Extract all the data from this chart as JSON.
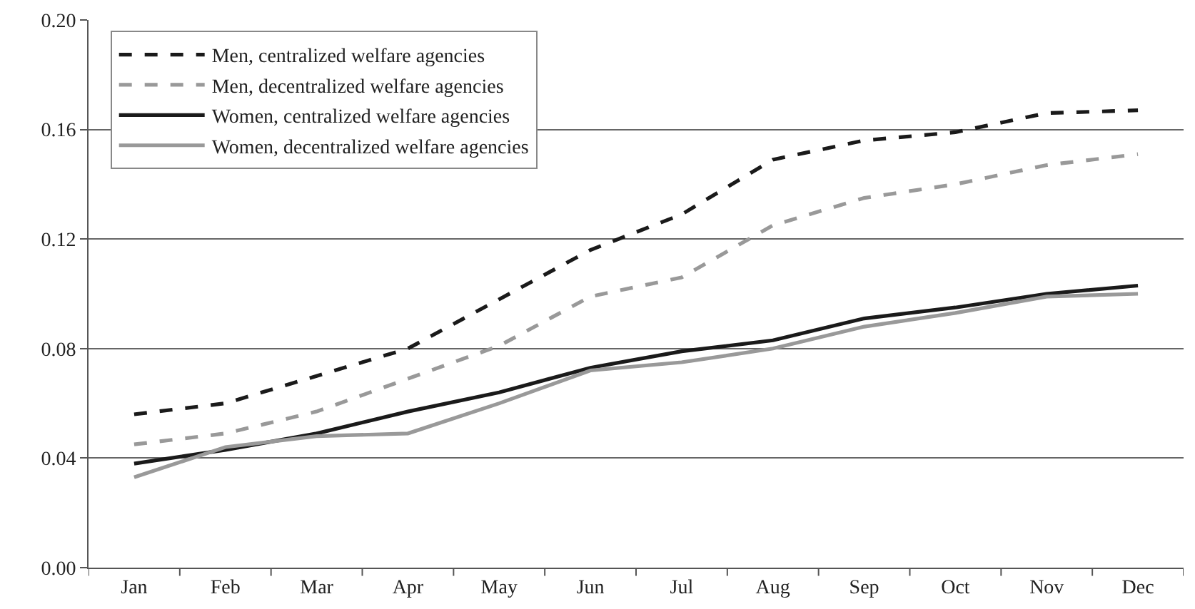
{
  "chart_data": {
    "type": "line",
    "categories": [
      "Jan",
      "Feb",
      "Mar",
      "Apr",
      "May",
      "Jun",
      "Jul",
      "Aug",
      "Sep",
      "Oct",
      "Nov",
      "Dec"
    ],
    "series": [
      {
        "name": "Men, centralized welfare agencies",
        "color": "#1a1a1a",
        "line_style": "dashed",
        "values": [
          0.056,
          0.06,
          0.07,
          0.08,
          0.098,
          0.116,
          0.129,
          0.149,
          0.156,
          0.159,
          0.166,
          0.167
        ]
      },
      {
        "name": "Men, decentralized welfare agencies",
        "color": "#999999",
        "line_style": "dashed",
        "values": [
          0.045,
          0.049,
          0.057,
          0.069,
          0.081,
          0.099,
          0.106,
          0.125,
          0.135,
          0.14,
          0.147,
          0.151
        ]
      },
      {
        "name": "Women, centralized welfare agencies",
        "color": "#1a1a1a",
        "line_style": "solid",
        "values": [
          0.038,
          0.043,
          0.049,
          0.057,
          0.064,
          0.073,
          0.079,
          0.083,
          0.091,
          0.095,
          0.1,
          0.103
        ]
      },
      {
        "name": "Women, decentralized welfare agencies",
        "color": "#999999",
        "line_style": "solid",
        "values": [
          0.033,
          0.044,
          0.048,
          0.049,
          0.06,
          0.072,
          0.075,
          0.08,
          0.088,
          0.093,
          0.099,
          0.1
        ]
      }
    ],
    "ylim": [
      0,
      0.2
    ],
    "yticks": [
      {
        "value": 0,
        "label": "0.00"
      },
      {
        "value": 0.04,
        "label": "0.04"
      },
      {
        "value": 0.08,
        "label": "0.08"
      },
      {
        "value": 0.12,
        "label": "0.12"
      },
      {
        "value": 0.16,
        "label": "0.16"
      },
      {
        "value": 0.2,
        "label": "0.20"
      }
    ],
    "grid": "y",
    "legend": "top left",
    "marker": "none"
  }
}
